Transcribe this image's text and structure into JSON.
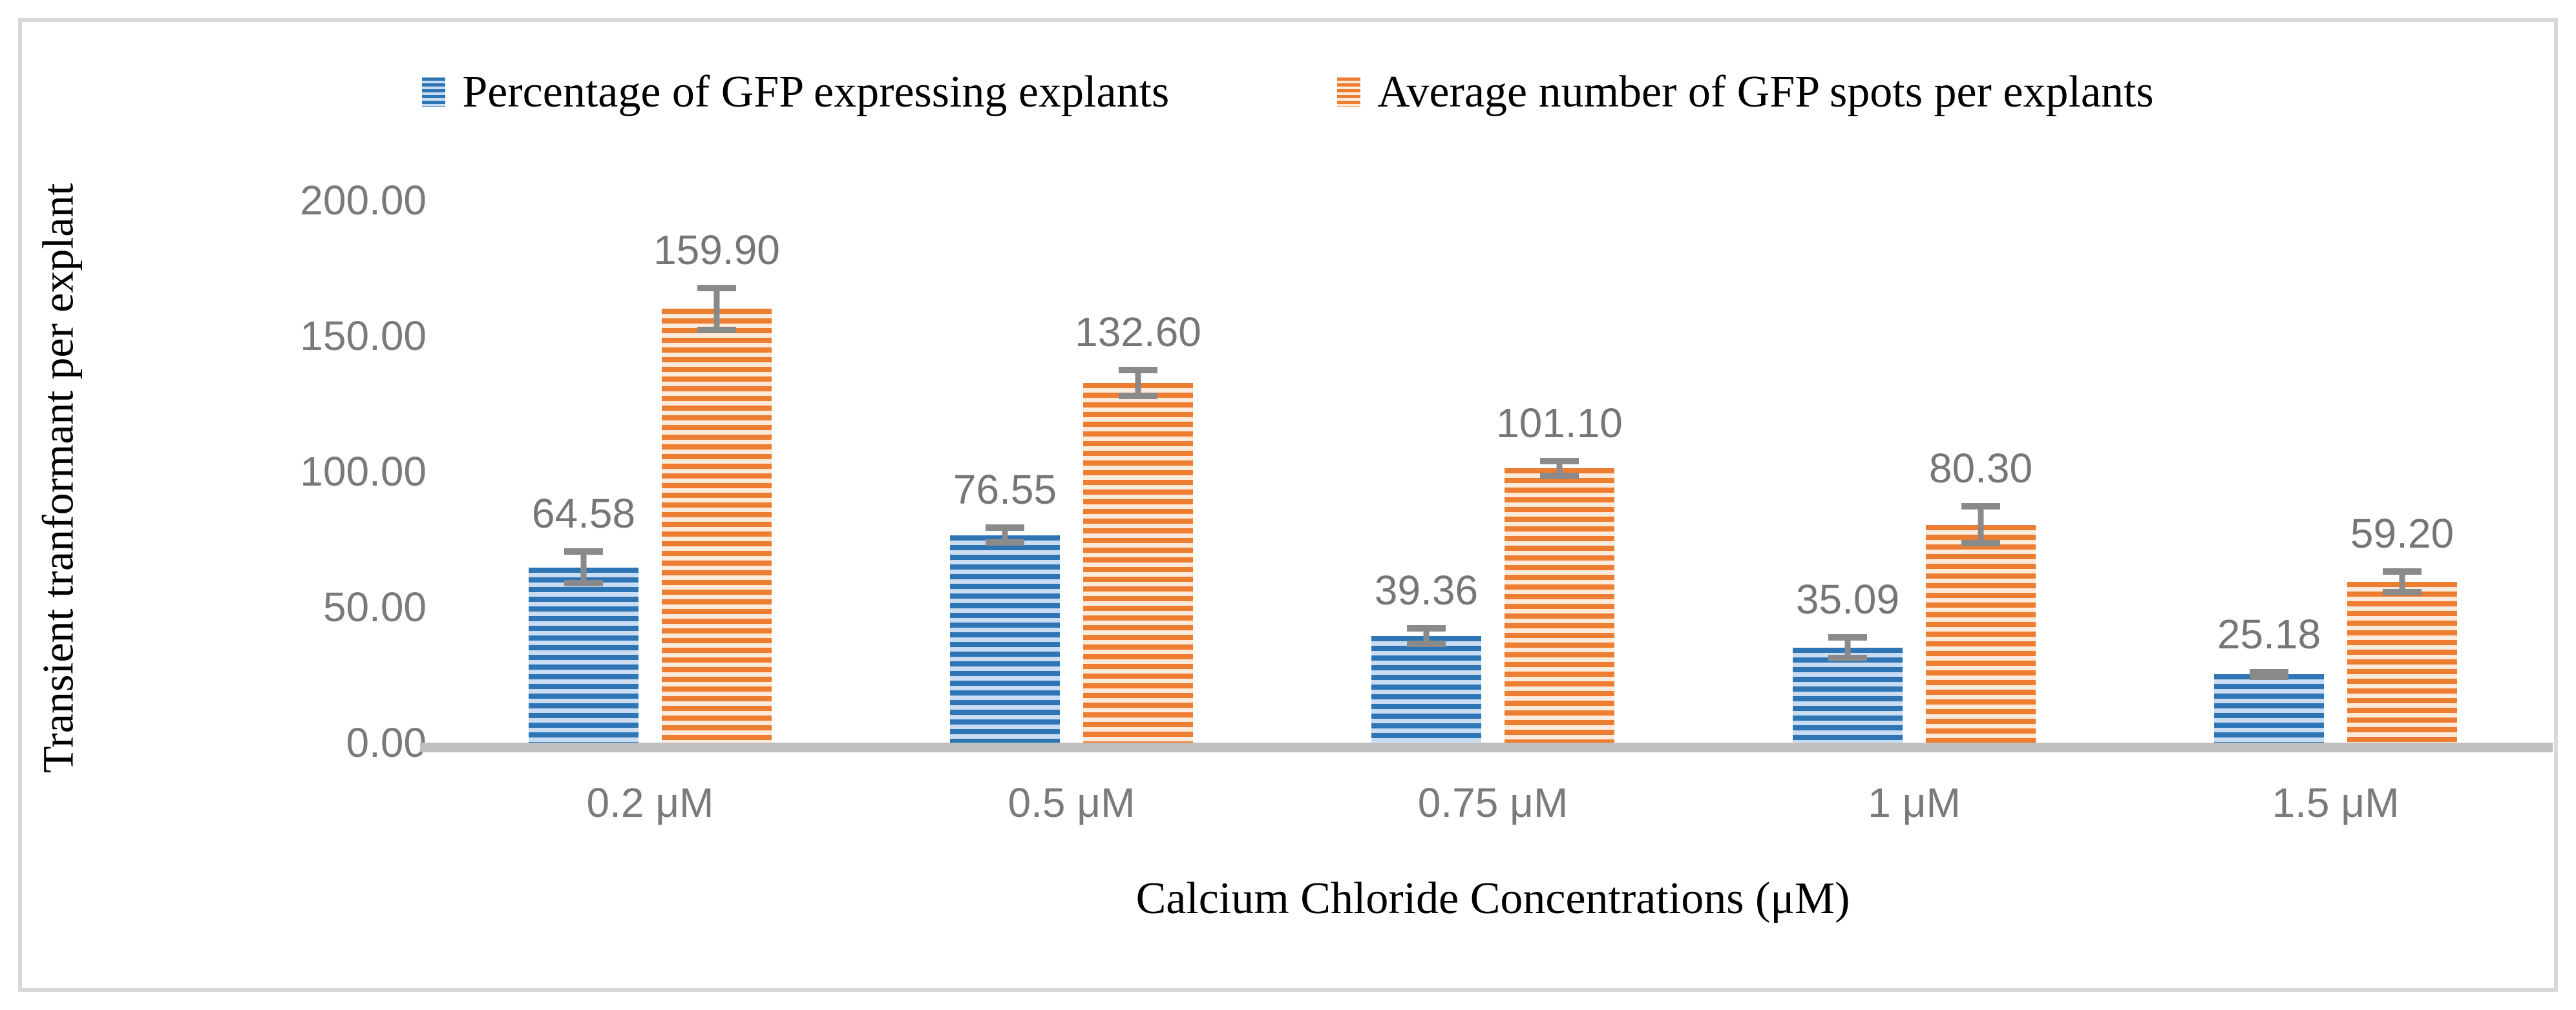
{
  "chart_data": {
    "type": "bar",
    "title": "",
    "categories": [
      "0.2 μM",
      "0.5 μM",
      "0.75 μM",
      "1 μM",
      "1.5 μM"
    ],
    "series": [
      {
        "name": "Percentage of GFP expressing explants",
        "color": "#2E75B6",
        "stripe_light": "#C9DCF1",
        "values": [
          64.58,
          76.55,
          39.36,
          35.09,
          25.18
        ],
        "labels": [
          "64.58",
          "76.55",
          "39.36",
          "35.09",
          "25.18"
        ],
        "errors": [
          7,
          4,
          4,
          5,
          2
        ]
      },
      {
        "name": "Average number of GFP spots per explants",
        "color": "#ED7D31",
        "stripe_light": "#FCEADB",
        "values": [
          159.9,
          132.6,
          101.1,
          80.3,
          59.2
        ],
        "labels": [
          "159.90",
          "132.60",
          "101.10",
          "80.30",
          "59.20"
        ],
        "errors": [
          9,
          6,
          4,
          8,
          5
        ]
      }
    ],
    "xlabel": "Calcium Chloride Concentrations (μM)",
    "ylabel": "Transient tranformant per explant",
    "ylim": [
      0,
      200
    ],
    "yticks": [
      "200.00",
      "150.00",
      "100.00",
      "50.00",
      "0.00"
    ],
    "grid": false,
    "legend_position": "top",
    "error_bars": true,
    "bar_pattern": "horizontal-stripes"
  },
  "colors": {
    "data_label_gray": "#767676",
    "tick_gray": "#7A7A7A",
    "error_bar_gray": "#8A8A8A",
    "axis_line_gray": "#BFBFBF",
    "frame_gray": "#D9D9D9"
  }
}
